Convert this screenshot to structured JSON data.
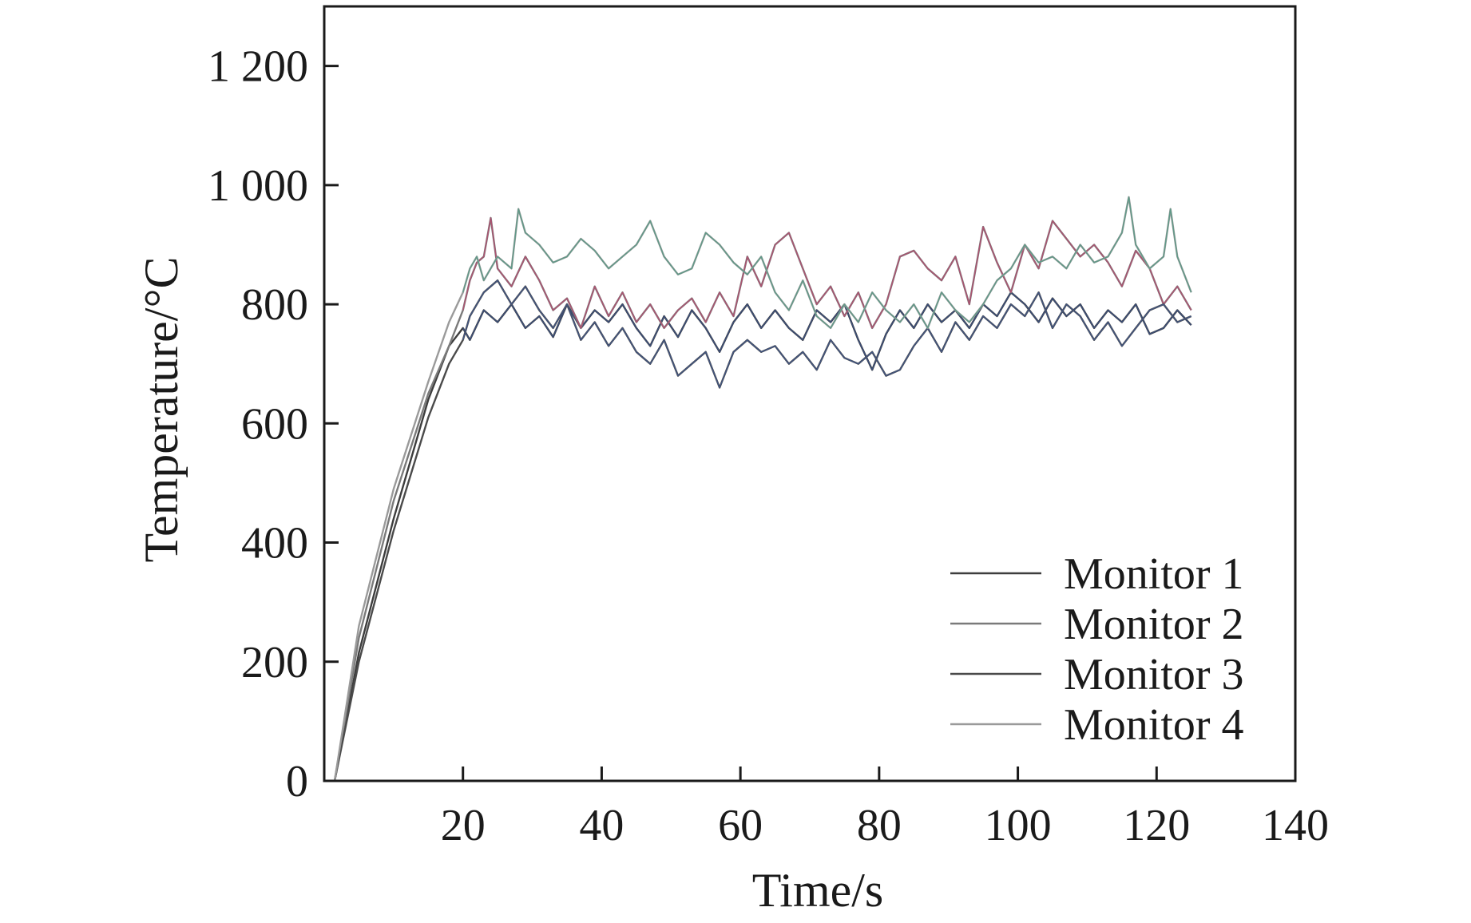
{
  "chart_data": {
    "type": "line",
    "xlabel": "Time/s",
    "ylabel": "Temperature/°C",
    "xlim": [
      0,
      140
    ],
    "ylim": [
      0,
      1300
    ],
    "x_ticks": [
      "20",
      "40",
      "60",
      "80",
      "100",
      "120",
      "140"
    ],
    "y_ticks": [
      "0",
      "200",
      "400",
      "600",
      "800",
      "1 000",
      "1 200"
    ],
    "grid": false,
    "legend_position": "bottom-right",
    "series": [
      {
        "name": "Monitor 1",
        "color": "#3d3d3d",
        "accent": "#3b5fb0",
        "x": [
          1.5,
          5,
          10,
          15,
          18,
          20,
          21,
          23,
          25,
          27,
          29,
          31,
          33,
          35,
          37,
          39,
          41,
          43,
          45,
          47,
          49,
          51,
          53,
          55,
          57,
          59,
          61,
          63,
          65,
          67,
          69,
          71,
          73,
          75,
          77,
          79,
          81,
          83,
          85,
          87,
          89,
          91,
          93,
          95,
          97,
          99,
          101,
          103,
          105,
          107,
          109,
          111,
          113,
          115,
          117,
          119,
          121,
          123,
          125
        ],
        "y": [
          0,
          215,
          440,
          640,
          730,
          760,
          740,
          790,
          770,
          800,
          760,
          780,
          745,
          800,
          760,
          790,
          770,
          800,
          760,
          730,
          780,
          745,
          790,
          760,
          720,
          770,
          800,
          760,
          790,
          760,
          740,
          790,
          770,
          800,
          740,
          690,
          750,
          790,
          760,
          800,
          770,
          790,
          760,
          800,
          780,
          820,
          800,
          770,
          810,
          780,
          800,
          760,
          790,
          770,
          800,
          750,
          760,
          790,
          765
        ]
      },
      {
        "name": "Monitor 2",
        "color": "#7a7a7a",
        "accent": "#d8326a",
        "x": [
          1.5,
          5,
          10,
          15,
          18,
          20,
          21,
          22,
          23,
          24,
          25,
          27,
          29,
          31,
          33,
          35,
          37,
          39,
          41,
          43,
          45,
          47,
          49,
          51,
          53,
          55,
          57,
          59,
          61,
          63,
          65,
          67,
          69,
          71,
          73,
          75,
          77,
          79,
          81,
          83,
          85,
          87,
          89,
          91,
          93,
          95,
          97,
          99,
          101,
          103,
          105,
          107,
          109,
          111,
          113,
          115,
          117,
          119,
          121,
          123,
          125
        ],
        "y": [
          0,
          240,
          470,
          650,
          730,
          790,
          840,
          870,
          880,
          945,
          860,
          830,
          880,
          840,
          790,
          810,
          760,
          830,
          780,
          820,
          770,
          800,
          760,
          790,
          810,
          770,
          820,
          780,
          880,
          830,
          900,
          920,
          860,
          800,
          830,
          780,
          820,
          760,
          800,
          880,
          890,
          860,
          840,
          880,
          800,
          930,
          870,
          820,
          900,
          860,
          940,
          910,
          880,
          900,
          870,
          830,
          890,
          860,
          800,
          830,
          790
        ]
      },
      {
        "name": "Monitor 3",
        "color": "#4a4a4a",
        "accent": "#3b5fb0",
        "x": [
          1.5,
          5,
          10,
          15,
          18,
          20,
          21,
          23,
          25,
          27,
          29,
          31,
          33,
          35,
          37,
          39,
          41,
          43,
          45,
          47,
          49,
          51,
          53,
          55,
          57,
          59,
          61,
          63,
          65,
          67,
          69,
          71,
          73,
          75,
          77,
          79,
          81,
          83,
          85,
          87,
          89,
          91,
          93,
          95,
          97,
          99,
          101,
          103,
          105,
          107,
          109,
          111,
          113,
          115,
          117,
          119,
          121,
          123,
          125
        ],
        "y": [
          0,
          200,
          420,
          610,
          700,
          740,
          780,
          820,
          840,
          800,
          830,
          790,
          760,
          800,
          740,
          770,
          730,
          760,
          720,
          700,
          740,
          680,
          700,
          720,
          660,
          720,
          740,
          720,
          730,
          700,
          720,
          690,
          740,
          710,
          700,
          720,
          680,
          690,
          730,
          760,
          720,
          770,
          740,
          780,
          760,
          800,
          780,
          820,
          760,
          800,
          780,
          740,
          770,
          730,
          760,
          790,
          800,
          770,
          780
        ]
      },
      {
        "name": "Monitor 4",
        "color": "#9a9a9a",
        "accent": "#2f9a7a",
        "x": [
          1.5,
          5,
          10,
          15,
          18,
          20,
          21,
          22,
          23,
          25,
          27,
          28,
          29,
          31,
          33,
          35,
          37,
          39,
          41,
          43,
          45,
          47,
          49,
          51,
          53,
          55,
          57,
          59,
          61,
          63,
          65,
          67,
          69,
          71,
          73,
          75,
          77,
          79,
          81,
          83,
          85,
          87,
          89,
          91,
          93,
          95,
          97,
          99,
          101,
          103,
          105,
          107,
          109,
          111,
          113,
          115,
          116,
          117,
          119,
          121,
          122,
          123,
          125
        ],
        "y": [
          0,
          260,
          490,
          670,
          770,
          820,
          860,
          880,
          840,
          880,
          860,
          960,
          920,
          900,
          870,
          880,
          910,
          890,
          860,
          880,
          900,
          940,
          880,
          850,
          860,
          920,
          900,
          870,
          850,
          880,
          820,
          790,
          840,
          780,
          760,
          800,
          770,
          820,
          790,
          770,
          800,
          760,
          820,
          790,
          770,
          800,
          840,
          860,
          900,
          870,
          880,
          860,
          900,
          870,
          880,
          920,
          980,
          900,
          860,
          880,
          960,
          880,
          820
        ]
      }
    ]
  }
}
